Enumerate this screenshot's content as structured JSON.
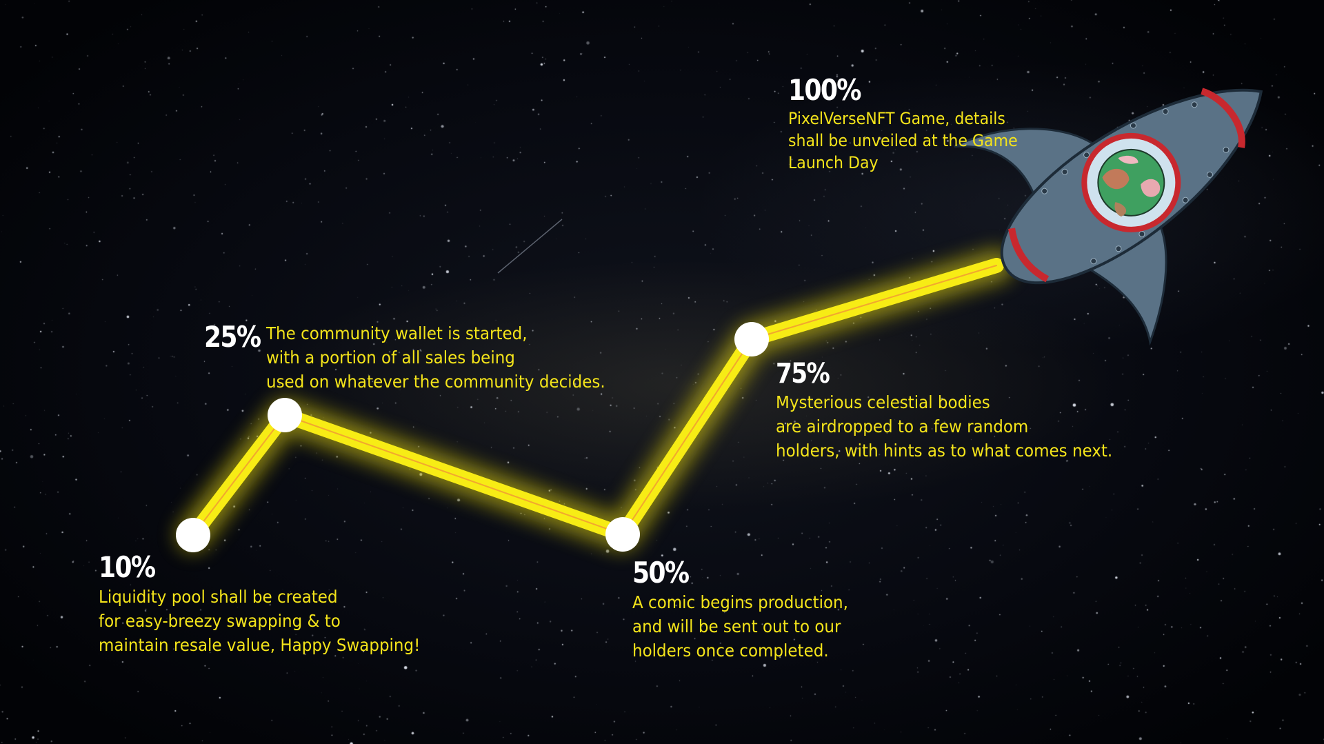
{
  "milestones": [
    {
      "percent": "10%",
      "text": "Liquidity pool shall be created\nfor easy-breezy swapping & to\nmaintain resale value, Happy Swapping!"
    },
    {
      "percent": "25%",
      "text": "The community wallet is started,\nwith a portion of all sales being\nused on whatever the community decides."
    },
    {
      "percent": "50%",
      "text": "A comic begins production,\nand will be sent out to our\nholders once completed."
    },
    {
      "percent": "75%",
      "text": "Mysterious celestial bodies\nare airdropped to a few random\nholders, with hints as to what comes next."
    },
    {
      "percent": "100%",
      "text": "PixelVerseNFT Game, details\nshall be unveiled at the Game\nLaunch Day"
    }
  ],
  "colors": {
    "path": "#f7ec15",
    "path_glow": "#e8d90e",
    "path_center": "#f08a3a",
    "node": "#ffffff",
    "text": "#f4e41a",
    "percent": "#ffffff",
    "rocket_body": "#5a7286",
    "rocket_trim": "#c8282e",
    "window": "#cfe2ee"
  },
  "icons": {
    "rocket": "rocket-icon",
    "planet": "planet-icon"
  }
}
